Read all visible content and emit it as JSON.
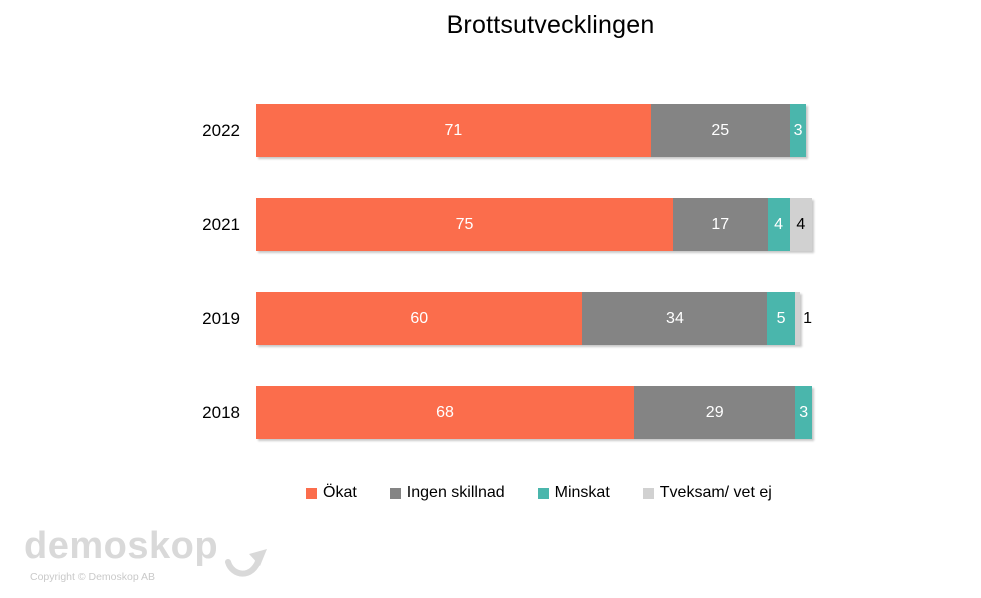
{
  "chart_data": {
    "type": "bar",
    "orientation": "horizontal-stacked",
    "title": "Brottsutvecklingen",
    "categories": [
      "2022",
      "2021",
      "2019",
      "2018"
    ],
    "series": [
      {
        "name": "Ökat",
        "color": "#FB6D4C",
        "label_color": "#FFFFFF",
        "values": [
          71,
          75,
          60,
          68
        ]
      },
      {
        "name": "Ingen skillnad",
        "color": "#848484",
        "label_color": "#FFFFFF",
        "values": [
          25,
          17,
          34,
          29
        ]
      },
      {
        "name": "Minskat",
        "color": "#4AB6AC",
        "label_color": "#FFFFFF",
        "values": [
          3,
          4,
          5,
          3
        ]
      },
      {
        "name": "Tveksam/ vet ej",
        "color": "#D1D1D1",
        "label_color": "#000000",
        "values": [
          0,
          4,
          1,
          0
        ]
      }
    ],
    "xlim": [
      0,
      100
    ],
    "value_labels": true,
    "grid": false,
    "legend_position": "bottom",
    "min_inside_label_value": 3
  },
  "footer": {
    "logo_text": "demoskop",
    "copyright": "Copyright © Demoskop AB"
  }
}
